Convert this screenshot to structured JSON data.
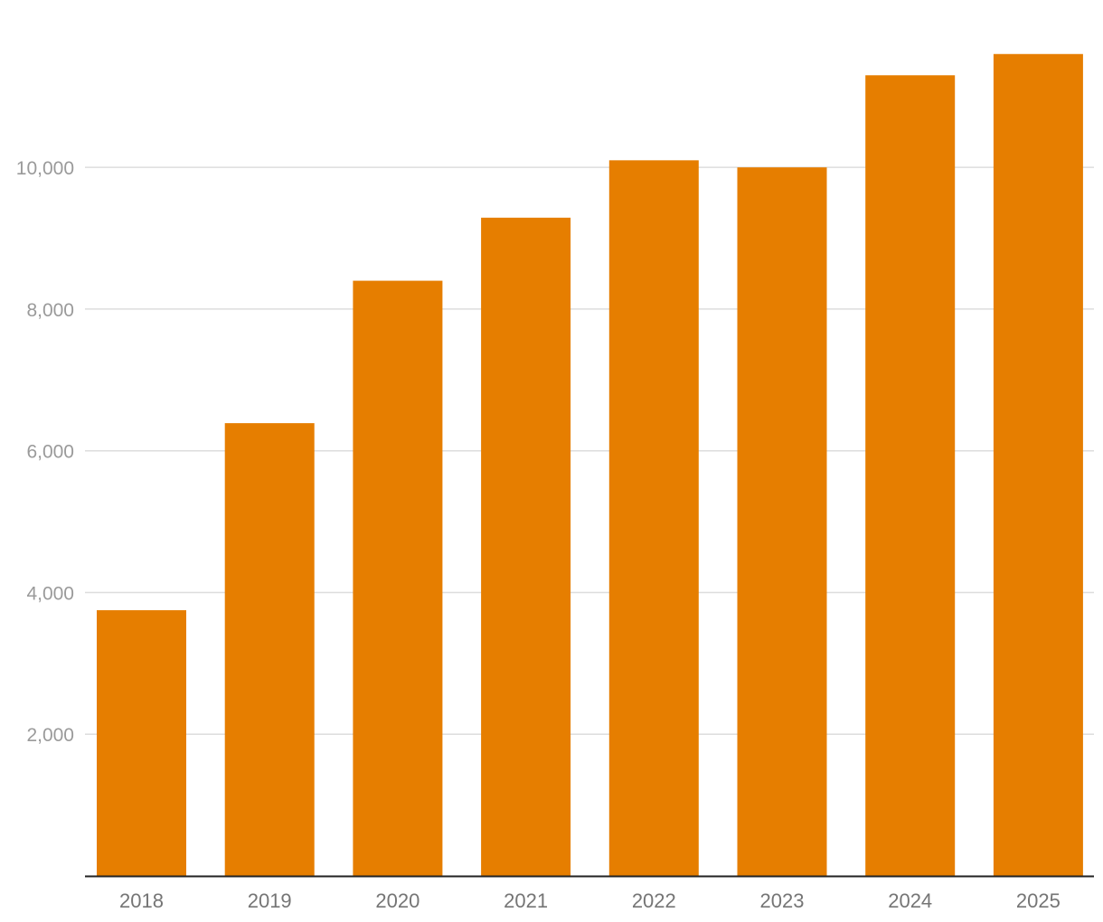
{
  "chart_data": {
    "type": "bar",
    "title": "",
    "xlabel": "",
    "ylabel": "",
    "categories": [
      "2018",
      "2019",
      "2020",
      "2021",
      "2022",
      "2023",
      "2024",
      "2025"
    ],
    "values": [
      3750,
      6390,
      8400,
      9290,
      10100,
      10000,
      11300,
      11600
    ],
    "ylim": [
      0,
      11750
    ],
    "yticks": [
      2000,
      4000,
      6000,
      8000,
      10000
    ],
    "ytick_labels": [
      "2,000",
      "4,000",
      "6,000",
      "8,000",
      "10,000"
    ],
    "bar_color": "#E67E00",
    "grid": true
  }
}
